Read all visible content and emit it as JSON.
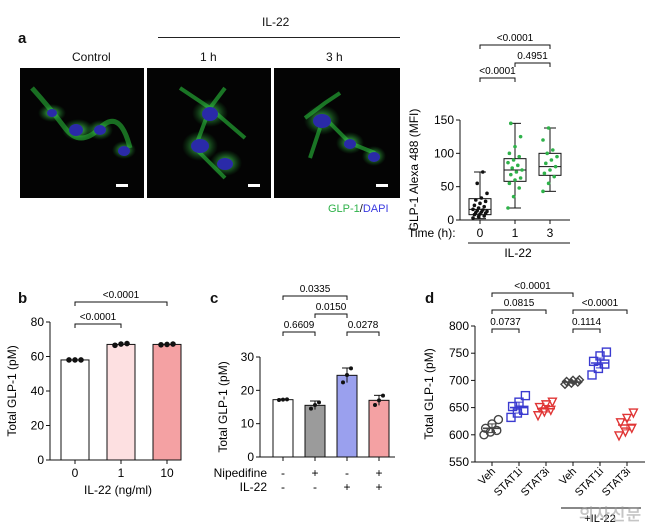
{
  "panels": {
    "a": "a",
    "b": "b",
    "c": "c",
    "d": "d"
  },
  "micrographs": {
    "group_label": "IL-22",
    "labels": [
      "Control",
      "1 h",
      "3 h"
    ],
    "legend_green": "GLP-1",
    "legend_sep": "/",
    "legend_blue": "DAPI",
    "colors": {
      "green": "#2fb24a",
      "blue": "#3a3ae0"
    }
  },
  "chart_data": [
    {
      "id": "a",
      "type": "boxplot",
      "ylabel": "GLP-1 Alexa 488 (MFI)",
      "xlabel": "Time (h):",
      "group_label": "IL-22",
      "categories": [
        "0",
        "1",
        "3"
      ],
      "ylim": [
        0,
        150
      ],
      "yticks": [
        "0",
        "50",
        "100",
        "150"
      ],
      "boxes": [
        {
          "min": 2,
          "q1": 8,
          "median": 16,
          "q3": 32,
          "max": 72,
          "color": "#111111"
        },
        {
          "min": 18,
          "q1": 58,
          "median": 75,
          "q3": 92,
          "max": 145,
          "color": "#2fb24a"
        },
        {
          "min": 43,
          "q1": 67,
          "median": 80,
          "q3": 100,
          "max": 138,
          "color": "#2fb24a"
        }
      ],
      "points": [
        [
          3,
          5,
          6,
          8,
          9,
          10,
          11,
          12,
          13,
          14,
          15,
          16,
          18,
          20,
          22,
          25,
          28,
          30,
          33,
          40,
          55,
          72
        ],
        [
          18,
          35,
          48,
          55,
          60,
          63,
          68,
          72,
          75,
          78,
          82,
          86,
          90,
          95,
          100,
          110,
          125,
          145
        ],
        [
          43,
          55,
          65,
          70,
          75,
          80,
          85,
          90,
          95,
          100,
          105,
          120,
          138
        ]
      ],
      "comparisons": [
        {
          "from": 0,
          "to": 2,
          "label": "<0.0001"
        },
        {
          "from": 0,
          "to": 1,
          "label": "<0.0001"
        },
        {
          "from": 1,
          "to": 2,
          "label": "0.4951"
        }
      ]
    },
    {
      "id": "b",
      "type": "bar",
      "ylabel": "Total GLP-1 (pM)",
      "xlabel": "IL-22 (ng/ml)",
      "categories": [
        "0",
        "1",
        "10"
      ],
      "values": [
        58,
        67,
        67
      ],
      "errors": [
        0.5,
        0.8,
        0.4
      ],
      "points": [
        [
          58,
          58,
          58
        ],
        [
          66.5,
          67.2,
          67.5
        ],
        [
          66.8,
          67,
          67.2
        ]
      ],
      "colors": [
        "#ffffff",
        "#fde0e1",
        "#f4a1a3"
      ],
      "ylim": [
        0,
        80
      ],
      "yticks": [
        "0",
        "20",
        "40",
        "60",
        "80"
      ],
      "comparisons": [
        {
          "from": 0,
          "to": 2,
          "label": "<0.0001"
        },
        {
          "from": 0,
          "to": 1,
          "label": "<0.0001"
        }
      ]
    },
    {
      "id": "c",
      "type": "bar",
      "ylabel": "Total GLP-1 (pM)",
      "row_labels": [
        "Nipedifine",
        "IL-22"
      ],
      "conditions": [
        [
          "-",
          "-"
        ],
        [
          "+",
          "-"
        ],
        [
          "-",
          "+"
        ],
        [
          "+",
          "+"
        ]
      ],
      "values": [
        17.2,
        15.5,
        24.5,
        17
      ],
      "errors": [
        0.2,
        1.3,
        2.2,
        1.5
      ],
      "points": [
        [
          17.1,
          17.2,
          17.3
        ],
        [
          14.5,
          15.6,
          16.4
        ],
        [
          22.4,
          24.6,
          26.6
        ],
        [
          15.6,
          17.0,
          18.4
        ]
      ],
      "colors": [
        "#ffffff",
        "#9b9b9b",
        "#9aa0ee",
        "#f4a1a3"
      ],
      "ylim": [
        0,
        30
      ],
      "yticks": [
        "0",
        "10",
        "20",
        "30"
      ],
      "comparisons": [
        {
          "from": 0,
          "to": 2,
          "label": "0.0335"
        },
        {
          "from": 1,
          "to": 2,
          "label": "0.0150"
        },
        {
          "from": 0,
          "to": 1,
          "label": "0.6609"
        },
        {
          "from": 2,
          "to": 3,
          "label": "0.0278"
        }
      ]
    },
    {
      "id": "d",
      "type": "scatter",
      "ylabel": "Total GLP-1 (pM)",
      "categories": [
        "Veh",
        "STAT1i",
        "STAT3i",
        "Veh",
        "STAT1i",
        "STAT3i"
      ],
      "group_label": "+IL-22",
      "ylim": [
        550,
        800
      ],
      "yticks": [
        "550",
        "600",
        "650",
        "700",
        "750",
        "800"
      ],
      "series": [
        {
          "marker": "circle",
          "color": "#444444",
          "mean": 612,
          "sem": 8,
          "values": [
            600,
            605,
            608,
            612,
            620,
            628
          ]
        },
        {
          "marker": "square",
          "color": "#3a3ad0",
          "mean": 650,
          "sem": 10,
          "values": [
            632,
            640,
            645,
            652,
            660,
            672
          ]
        },
        {
          "marker": "triangle-down",
          "color": "#e03535",
          "mean": 648,
          "sem": 6,
          "values": [
            635,
            642,
            645,
            650,
            655,
            660
          ]
        },
        {
          "marker": "diamond",
          "color": "#444444",
          "mean": 697,
          "sem": 2,
          "values": [
            693,
            695,
            697,
            698,
            700,
            701
          ]
        },
        {
          "marker": "square",
          "color": "#3a3ad0",
          "mean": 732,
          "sem": 9,
          "values": [
            710,
            722,
            730,
            735,
            745,
            752
          ]
        },
        {
          "marker": "triangle-down",
          "color": "#e03535",
          "mean": 618,
          "sem": 9,
          "values": [
            598,
            605,
            612,
            622,
            630,
            640
          ]
        }
      ],
      "comparisons": [
        {
          "from": 0,
          "to": 3,
          "label": "<0.0001"
        },
        {
          "from": 0,
          "to": 2,
          "label": "0.0815"
        },
        {
          "from": 0,
          "to": 1,
          "label": "0.0737"
        },
        {
          "from": 3,
          "to": 5,
          "label": "<0.0001"
        },
        {
          "from": 3,
          "to": 4,
          "label": "0.1114"
        }
      ]
    }
  ]
}
